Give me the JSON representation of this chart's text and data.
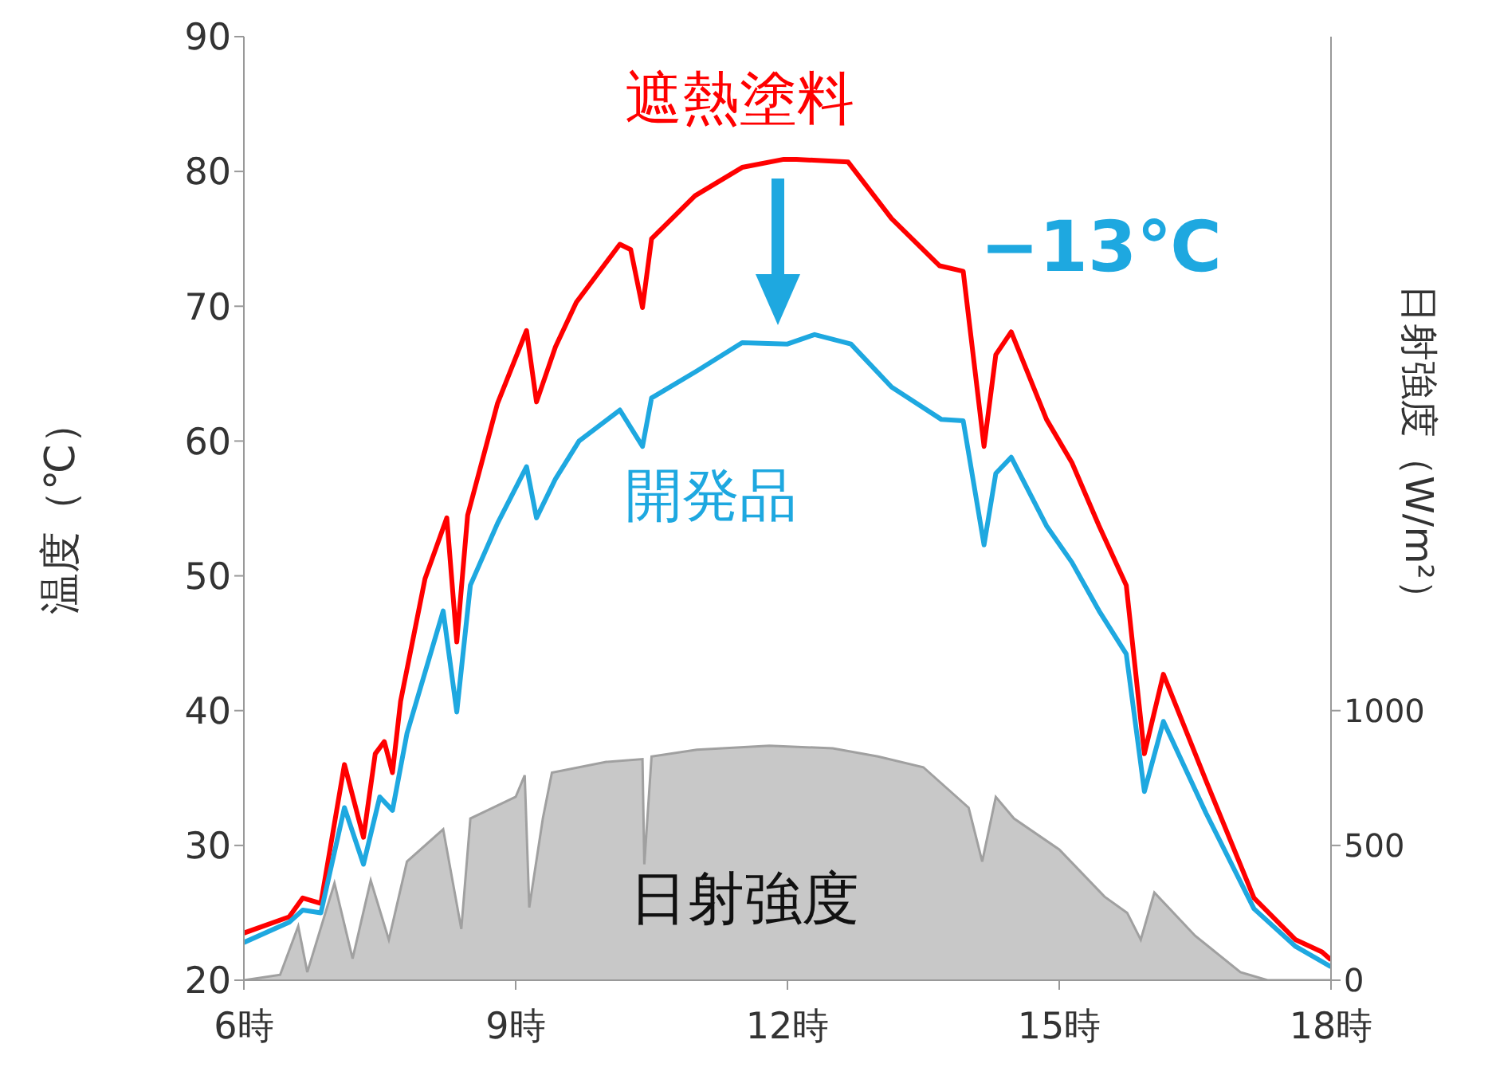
{
  "chart_data": {
    "type": "line",
    "ylabel": "温度（℃）",
    "y2label": "日射強度（W/m²）",
    "annotations": [
      "−13℃"
    ],
    "xlim": [
      6,
      18
    ],
    "xticks": [
      {
        "value": 6,
        "label": "6時"
      },
      {
        "value": 9,
        "label": "9時"
      },
      {
        "value": 12,
        "label": "12時"
      },
      {
        "value": 15,
        "label": "15時"
      },
      {
        "value": 18,
        "label": "18時"
      }
    ],
    "ylim": [
      20,
      90
    ],
    "yticks": [
      20,
      30,
      40,
      50,
      60,
      70,
      80,
      90
    ],
    "y2lim": [
      0,
      3500
    ],
    "y2ticks": [
      0,
      500,
      1000
    ],
    "marker": "none",
    "line_style": "solid",
    "series": [
      {
        "name": "日射強度",
        "type": "area",
        "axis": "y2",
        "color": "#c8c8c8",
        "x": [
          6,
          6.4,
          6.6,
          6.7,
          7,
          7.2,
          7.4,
          7.6,
          7.8,
          8.2,
          8.4,
          8.5,
          9,
          9.1,
          9.15,
          9.3,
          9.4,
          10,
          10.4,
          10.42,
          10.5,
          11,
          11.8,
          12.5,
          13,
          13.5,
          14,
          14.15,
          14.3,
          14.5,
          15,
          15.5,
          15.75,
          15.9,
          16.05,
          16.5,
          17,
          17.3,
          18
        ],
        "values": [
          0,
          20,
          200,
          30,
          360,
          80,
          370,
          150,
          440,
          560,
          190,
          600,
          680,
          760,
          270,
          600,
          770,
          810,
          820,
          430,
          830,
          855,
          870,
          860,
          830,
          790,
          640,
          440,
          680,
          600,
          485,
          310,
          250,
          150,
          325,
          165,
          30,
          0,
          0
        ]
      },
      {
        "name": "遮熱塗料",
        "color": "#ff0000",
        "x": [
          6,
          6.5,
          6.65,
          6.85,
          7.11,
          7.32,
          7.45,
          7.55,
          7.64,
          7.73,
          8,
          8.24,
          8.35,
          8.47,
          8.8,
          9.12,
          9.23,
          9.44,
          9.67,
          10.15,
          10.27,
          10.4,
          10.5,
          10.98,
          11.5,
          11.96,
          12.1,
          12.67,
          13.15,
          13.68,
          13.94,
          14.17,
          14.3,
          14.47,
          14.86,
          15.14,
          15.44,
          15.74,
          15.94,
          16.15,
          16.62,
          17.15,
          17.61,
          17.9,
          18
        ],
        "values": [
          23.5,
          24.7,
          26.1,
          25.7,
          36,
          30.6,
          36.8,
          37.7,
          35.4,
          40.7,
          49.8,
          54.3,
          45.1,
          54.5,
          62.8,
          68.2,
          62.9,
          67,
          70.3,
          74.6,
          74.2,
          69.9,
          75,
          78.2,
          80.3,
          80.9,
          80.9,
          80.7,
          76.5,
          73,
          72.6,
          59.6,
          66.4,
          68.1,
          61.6,
          58.4,
          53.7,
          49.3,
          36.8,
          42.7,
          34.8,
          26.1,
          23,
          22.1,
          21.5
        ]
      },
      {
        "name": "開発品",
        "color": "#1ea8e0",
        "x": [
          6,
          6.5,
          6.65,
          6.85,
          7.11,
          7.32,
          7.5,
          7.64,
          7.8,
          8.2,
          8.35,
          8.5,
          8.8,
          9.12,
          9.23,
          9.44,
          9.7,
          10.15,
          10.4,
          10.5,
          11,
          11.5,
          12,
          12.3,
          12.7,
          13.15,
          13.7,
          13.94,
          14.17,
          14.3,
          14.47,
          14.86,
          15.14,
          15.44,
          15.74,
          15.94,
          16.15,
          16.62,
          17.15,
          17.61,
          18
        ],
        "values": [
          22.8,
          24.3,
          25.2,
          25,
          32.8,
          28.6,
          33.6,
          32.6,
          38.3,
          47.4,
          39.9,
          49.3,
          53.9,
          58.1,
          54.3,
          57.2,
          60,
          62.3,
          59.6,
          63.2,
          65.2,
          67.3,
          67.2,
          67.9,
          67.2,
          64,
          61.6,
          61.5,
          52.3,
          57.6,
          58.8,
          53.7,
          51,
          47.4,
          44.2,
          34,
          39.2,
          32.4,
          25.3,
          22.5,
          21
        ]
      }
    ]
  }
}
